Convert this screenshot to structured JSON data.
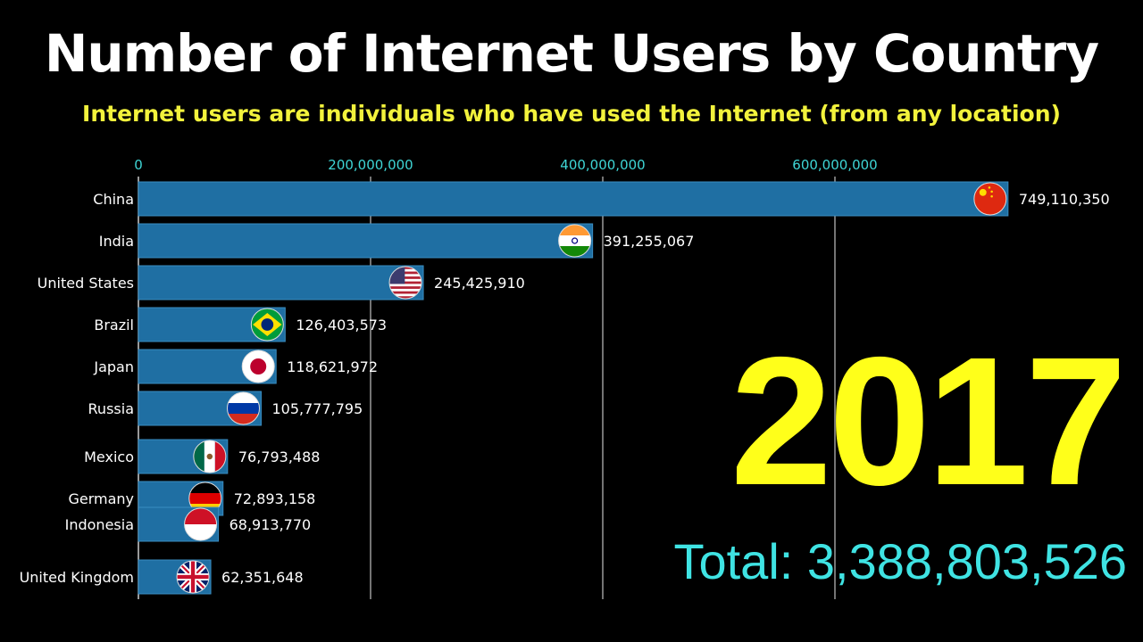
{
  "title": "Number of Internet Users by Country",
  "subtitle": "Internet users are individuals who have used the Internet (from any location)",
  "year": "2017",
  "total_label": "Total: 3,388,803,526",
  "colors": {
    "background": "#000000",
    "bar": "#1f6fa3",
    "tick": "#3fd6d6",
    "title": "#ffffff",
    "subtitle": "#f2f23c",
    "year": "#ffff1a",
    "total": "#3fe3e3"
  },
  "chart_data": {
    "type": "bar",
    "orientation": "horizontal",
    "x_ticks": [
      0,
      200000000,
      400000000,
      600000000
    ],
    "x_tick_labels": [
      "0",
      "200,000,000",
      "400,000,000",
      "600,000,000"
    ],
    "xlim": [
      0,
      800000000
    ],
    "grid": true,
    "categories": [
      "China",
      "India",
      "United States",
      "Brazil",
      "Japan",
      "Russia",
      "Mexico",
      "Germany",
      "Indonesia",
      "United Kingdom"
    ],
    "values": [
      749110350,
      391255067,
      245425910,
      126403573,
      118621972,
      105777795,
      76793488,
      72893158,
      68913770,
      62351648
    ],
    "value_labels": [
      "749,110,350",
      "391,255,067",
      "245,425,910",
      "126,403,573",
      "118,621,972",
      "105,777,795",
      "76,793,488",
      "72,893,158",
      "68,913,770",
      "62,351,648"
    ],
    "flags": [
      "china-flag-icon",
      "india-flag-icon",
      "usa-flag-icon",
      "brazil-flag-icon",
      "japan-flag-icon",
      "russia-flag-icon",
      "mexico-flag-icon",
      "germany-flag-icon",
      "indonesia-flag-icon",
      "uk-flag-icon"
    ]
  }
}
